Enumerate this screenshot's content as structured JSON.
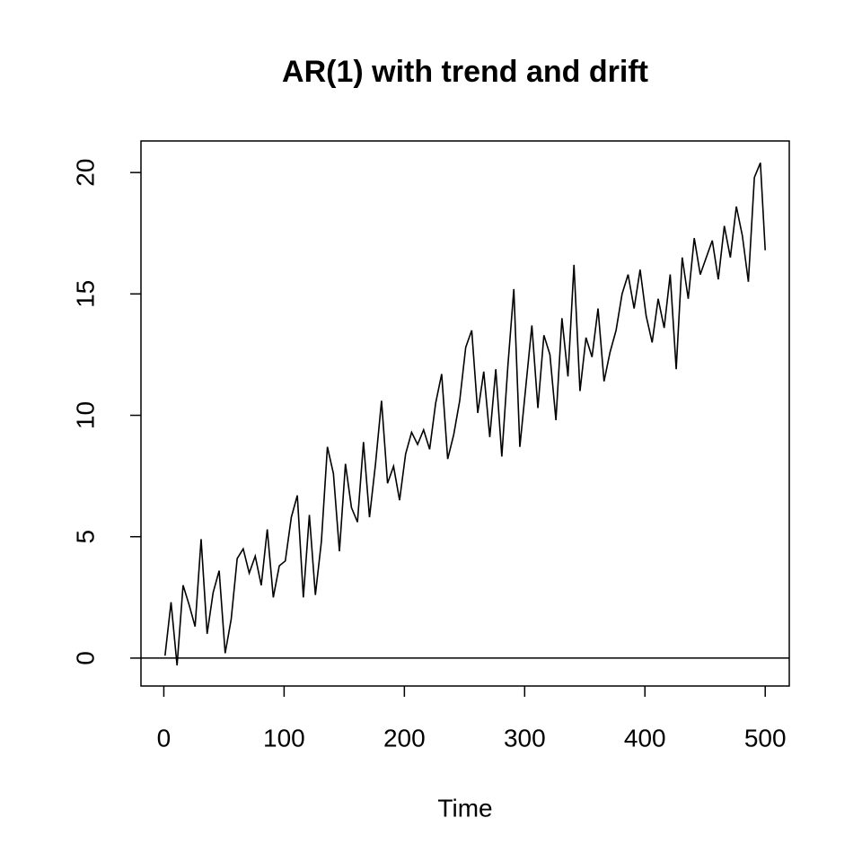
{
  "chart_data": {
    "type": "line",
    "title": "AR(1) with trend and drift",
    "xlabel": "Time",
    "x": [
      1,
      6,
      11,
      16,
      21,
      26,
      31,
      36,
      41,
      46,
      51,
      56,
      61,
      66,
      71,
      76,
      81,
      86,
      91,
      96,
      101,
      106,
      111,
      116,
      121,
      126,
      131,
      136,
      141,
      146,
      151,
      156,
      161,
      166,
      171,
      176,
      181,
      186,
      191,
      196,
      201,
      206,
      211,
      216,
      221,
      226,
      231,
      236,
      241,
      246,
      251,
      256,
      261,
      266,
      271,
      276,
      281,
      286,
      291,
      296,
      301,
      306,
      311,
      316,
      321,
      326,
      331,
      336,
      341,
      346,
      351,
      356,
      361,
      366,
      371,
      376,
      381,
      386,
      391,
      396,
      401,
      406,
      411,
      416,
      421,
      426,
      431,
      436,
      441,
      446,
      451,
      456,
      461,
      466,
      471,
      476,
      481,
      486,
      491,
      496,
      500
    ],
    "series": [
      {
        "color": "#000000",
        "values": [
          0.1,
          2.3,
          -0.3,
          3.0,
          2.2,
          1.3,
          4.9,
          1.0,
          2.7,
          3.6,
          0.2,
          1.6,
          4.1,
          4.5,
          3.5,
          4.2,
          3.0,
          5.3,
          2.5,
          3.8,
          4.0,
          5.8,
          6.7,
          2.5,
          5.9,
          2.6,
          4.8,
          8.7,
          7.6,
          4.4,
          8.0,
          6.2,
          5.6,
          8.9,
          5.8,
          8.0,
          10.6,
          7.2,
          7.9,
          6.5,
          8.4,
          9.3,
          8.8,
          9.4,
          8.6,
          10.5,
          11.7,
          8.2,
          9.2,
          10.6,
          12.8,
          13.5,
          10.1,
          11.8,
          9.1,
          11.9,
          8.3,
          12.0,
          15.2,
          8.7,
          11.2,
          13.7,
          10.3,
          13.3,
          12.5,
          9.8,
          14.0,
          11.6,
          16.2,
          11.0,
          13.2,
          12.4,
          14.4,
          11.4,
          12.6,
          13.5,
          15.0,
          15.8,
          14.4,
          16.0,
          14.1,
          13.0,
          14.8,
          13.6,
          15.8,
          11.9,
          16.5,
          14.8,
          17.3,
          15.8,
          16.5,
          17.2,
          15.6,
          17.8,
          16.5,
          18.6,
          17.4,
          15.5,
          19.8,
          20.4,
          16.8
        ]
      }
    ],
    "reference_line": 0,
    "xlim": [
      -19,
      520
    ],
    "xticks": [
      0,
      100,
      200,
      300,
      400,
      500
    ],
    "ylim": [
      -1.15,
      21.3
    ],
    "yticks": [
      0,
      5,
      10,
      15,
      20
    ]
  }
}
